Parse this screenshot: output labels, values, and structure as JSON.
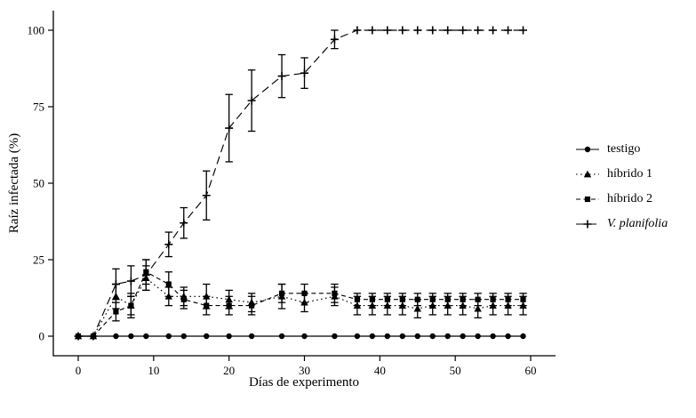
{
  "chart_data": {
    "type": "line",
    "title": "",
    "xlabel": "Días de experimento",
    "ylabel": "Raíz infectada (%)",
    "xlim": [
      0,
      60
    ],
    "ylim": [
      0,
      100
    ],
    "x_ticks": [
      0,
      10,
      20,
      30,
      40,
      50,
      60
    ],
    "y_ticks": [
      0,
      25,
      50,
      75,
      100
    ],
    "grid": false,
    "legend_position": "right",
    "color": "#000000",
    "background": "#ffffff",
    "x": [
      0,
      2,
      5,
      7,
      9,
      12,
      14,
      17,
      20,
      23,
      27,
      30,
      34,
      37,
      39,
      41,
      43,
      45,
      47,
      49,
      51,
      53,
      55,
      57,
      59
    ],
    "series": [
      {
        "name": "testigo",
        "marker": "circle",
        "linestyle": "solid",
        "italic": false,
        "values": [
          0,
          0,
          0,
          0,
          0,
          0,
          0,
          0,
          0,
          0,
          0,
          0,
          0,
          0,
          0,
          0,
          0,
          0,
          0,
          0,
          0,
          0,
          0,
          0,
          0
        ],
        "errors": [
          0,
          0,
          0,
          0,
          0,
          0,
          0,
          0,
          0,
          0,
          0,
          0,
          0,
          0,
          0,
          0,
          0,
          0,
          0,
          0,
          0,
          0,
          0,
          0,
          0
        ]
      },
      {
        "name": "híbrido 1",
        "marker": "triangle",
        "linestyle": "dotted",
        "italic": false,
        "values": [
          0,
          0,
          13,
          10,
          19,
          13,
          13,
          13,
          12,
          11,
          13,
          11,
          13,
          10,
          10,
          10,
          10,
          9,
          10,
          10,
          10,
          9,
          10,
          10,
          10
        ],
        "errors": [
          0,
          0,
          4,
          3,
          4,
          3,
          3,
          4,
          3,
          3,
          4,
          3,
          3,
          3,
          3,
          3,
          3,
          3,
          3,
          3,
          3,
          3,
          3,
          3,
          3
        ]
      },
      {
        "name": "híbrido 2",
        "marker": "square",
        "linestyle": "dashed",
        "italic": false,
        "values": [
          0,
          0,
          8,
          10,
          21,
          17,
          12,
          10,
          10,
          10,
          14,
          14,
          14,
          12,
          12,
          12,
          12,
          12,
          12,
          12,
          12,
          12,
          12,
          12,
          12
        ],
        "errors": [
          0,
          0,
          3,
          4,
          4,
          4,
          3,
          3,
          3,
          3,
          3,
          3,
          3,
          2,
          2,
          2,
          2,
          2,
          2,
          2,
          2,
          2,
          2,
          2,
          2
        ]
      },
      {
        "name": "V. planifolia",
        "marker": "plus",
        "linestyle": "longdash",
        "italic": true,
        "values": [
          0,
          0,
          17,
          18,
          20,
          30,
          37,
          46,
          68,
          77,
          85,
          86,
          97,
          100,
          100,
          100,
          100,
          100,
          100,
          100,
          100,
          100,
          100,
          100,
          100
        ],
        "errors": [
          0,
          0,
          5,
          5,
          5,
          4,
          5,
          8,
          11,
          10,
          7,
          5,
          3,
          0,
          0,
          0,
          0,
          0,
          0,
          0,
          0,
          0,
          0,
          0,
          0
        ]
      }
    ]
  }
}
